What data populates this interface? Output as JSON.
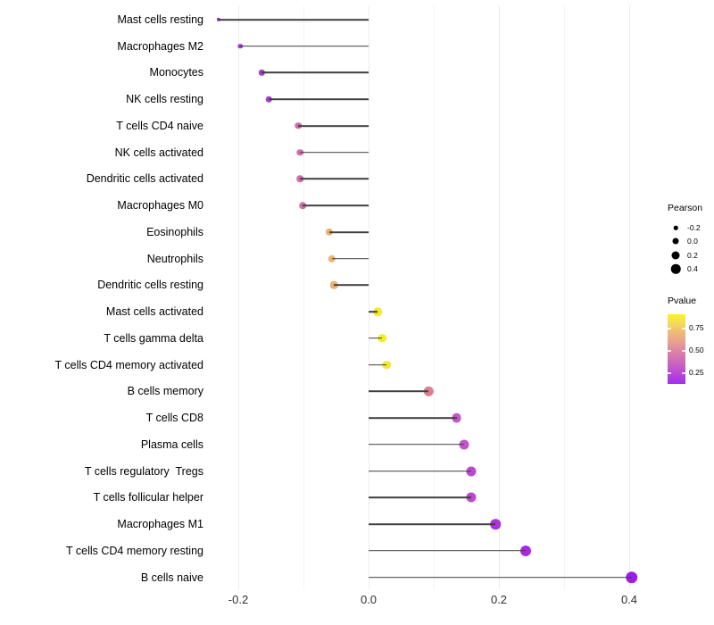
{
  "chart_data": {
    "type": "lollipop",
    "orientation": "horizontal",
    "title": "",
    "xlabel": "",
    "ylabel": "",
    "xlim": [
      -0.26,
      0.45
    ],
    "grid": "vertical, faint gray, every 0.1",
    "x_ticks": [
      "-0.2",
      "0.0",
      "0.2",
      "0.4"
    ],
    "x_tick_values": [
      -0.2,
      0.0,
      0.2,
      0.4
    ],
    "rows": [
      {
        "label": "Mast cells resting",
        "pearson": -0.23,
        "color": "#982bd4"
      },
      {
        "label": "Macrophages M2",
        "pearson": -0.197,
        "color": "#a337d6"
      },
      {
        "label": "Monocytes",
        "pearson": -0.164,
        "color": "#a83cd4"
      },
      {
        "label": "NK cells resting",
        "pearson": -0.153,
        "color": "#aa3fd2"
      },
      {
        "label": "T cells CD4 naive",
        "pearson": -0.108,
        "color": "#cd6cab"
      },
      {
        "label": "NK cells activated",
        "pearson": -0.105,
        "color": "#cf6fa9"
      },
      {
        "label": "Dendritic cells activated",
        "pearson": -0.105,
        "color": "#ce6daa"
      },
      {
        "label": "Macrophages M0",
        "pearson": -0.101,
        "color": "#d071a7"
      },
      {
        "label": "Eosinophils",
        "pearson": -0.06,
        "color": "#eeb06e"
      },
      {
        "label": "Neutrophils",
        "pearson": -0.056,
        "color": "#efb370"
      },
      {
        "label": "Dendritic cells resting",
        "pearson": -0.053,
        "color": "#eeb26f"
      },
      {
        "label": "Mast cells activated",
        "pearson": 0.014,
        "color": "#f2ea31"
      },
      {
        "label": "T cells gamma delta",
        "pearson": 0.021,
        "color": "#f3ee2b"
      },
      {
        "label": "T cells CD4 memory activated",
        "pearson": 0.028,
        "color": "#f1e73a"
      },
      {
        "label": "B cells memory",
        "pearson": 0.092,
        "color": "#d97f90"
      },
      {
        "label": "T cells CD8",
        "pearson": 0.135,
        "color": "#c458c6"
      },
      {
        "label": "Plasma cells",
        "pearson": 0.146,
        "color": "#c255ca"
      },
      {
        "label": "T cells regulatory  Tregs",
        "pearson": 0.157,
        "color": "#bb48d3"
      },
      {
        "label": "T cells follicular helper",
        "pearson": 0.157,
        "color": "#bb48d3"
      },
      {
        "label": "Macrophages M1",
        "pearson": 0.195,
        "color": "#ab32dd"
      },
      {
        "label": "T cells CD4 memory resting",
        "pearson": 0.241,
        "color": "#a52ae2"
      },
      {
        "label": "B cells naive",
        "pearson": 0.404,
        "color": "#9c1ee6"
      }
    ],
    "legend_size": {
      "title": "Pearson",
      "entries": [
        {
          "label": "-0.2",
          "value": -0.2
        },
        {
          "label": "0.0",
          "value": 0.0
        },
        {
          "label": "0.2",
          "value": 0.2
        },
        {
          "label": "0.4",
          "value": 0.4
        }
      ],
      "dot_color": "#000000"
    },
    "legend_color": {
      "title": "Pvalue",
      "ticks": [
        "0.75",
        "0.50",
        "0.25"
      ],
      "tick_values": [
        0.75,
        0.5,
        0.25
      ],
      "gradient_top_color": "#f8f321",
      "gradient_mid_color": "#df8aa2",
      "gradient_bottom_color": "#a22ff0"
    },
    "stem_color": "#3f3f3f",
    "legend_position": "right"
  }
}
